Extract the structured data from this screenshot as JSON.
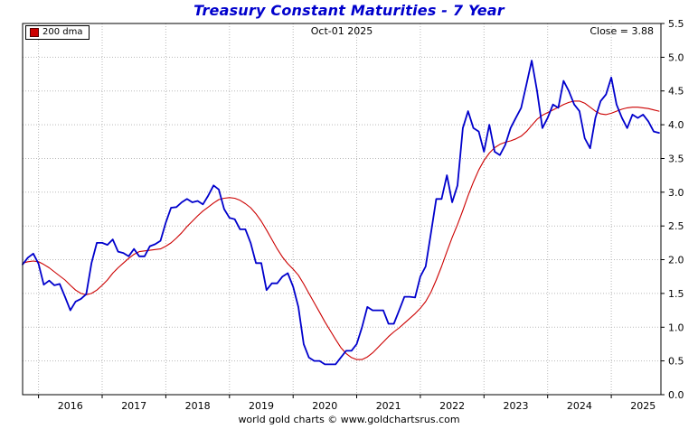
{
  "header": {
    "title": "Treasury Constant Maturities - 7 Year",
    "date_label": "Oct-01 2025",
    "close_label": "Close = 3.88"
  },
  "legend": {
    "items": [
      {
        "label": "200 dma",
        "color": "#cc0000"
      }
    ]
  },
  "footer": {
    "credit": "world gold charts © www.goldchartsrus.com"
  },
  "colors": {
    "title": "#0000cc",
    "yield_line": "#0000cc",
    "dma_line": "#cc0000",
    "grid": "#b9b9b9",
    "frame": "#000000"
  },
  "chart_data": {
    "type": "line",
    "title": "Treasury Constant Maturities - 7 Year",
    "xlabel": "",
    "ylabel": "",
    "grid": true,
    "legend_position": "top-left",
    "x_unit": "decimal_year",
    "xlim": [
      2015.75,
      2025.78
    ],
    "ylim": [
      0.0,
      5.5
    ],
    "y_tick_step": 0.5,
    "y_ticks": [
      0.0,
      0.5,
      1.0,
      1.5,
      2.0,
      2.5,
      3.0,
      3.5,
      4.0,
      4.5,
      5.0,
      5.5
    ],
    "y_tick_labels": [
      "0.0",
      "0.5",
      "1.0",
      "1.5",
      "2.0",
      "2.5",
      "3.0",
      "3.5",
      "4.0",
      "4.5",
      "5.0",
      "5.5"
    ],
    "x_ticks": [
      2016,
      2017,
      2018,
      2019,
      2020,
      2021,
      2022,
      2023,
      2024,
      2025
    ],
    "x_tick_labels": [
      "2016",
      "2017",
      "2018",
      "2019",
      "2020",
      "2021",
      "2022",
      "2023",
      "2024",
      "2025"
    ],
    "annotations": {
      "date": "Oct-01 2025",
      "close_text": "Close = 3.88",
      "last_close": 3.88
    },
    "x": [
      2015.75,
      2015.833,
      2015.917,
      2016.0,
      2016.083,
      2016.167,
      2016.25,
      2016.333,
      2016.417,
      2016.5,
      2016.583,
      2016.667,
      2016.75,
      2016.833,
      2016.917,
      2017.0,
      2017.083,
      2017.167,
      2017.25,
      2017.333,
      2017.417,
      2017.5,
      2017.583,
      2017.667,
      2017.75,
      2017.833,
      2017.917,
      2018.0,
      2018.083,
      2018.167,
      2018.25,
      2018.333,
      2018.417,
      2018.5,
      2018.583,
      2018.667,
      2018.75,
      2018.833,
      2018.917,
      2019.0,
      2019.083,
      2019.167,
      2019.25,
      2019.333,
      2019.417,
      2019.5,
      2019.583,
      2019.667,
      2019.75,
      2019.833,
      2019.917,
      2020.0,
      2020.083,
      2020.167,
      2020.25,
      2020.333,
      2020.417,
      2020.5,
      2020.583,
      2020.667,
      2020.75,
      2020.833,
      2020.917,
      2021.0,
      2021.083,
      2021.167,
      2021.25,
      2021.333,
      2021.417,
      2021.5,
      2021.583,
      2021.667,
      2021.75,
      2021.833,
      2021.917,
      2022.0,
      2022.083,
      2022.167,
      2022.25,
      2022.333,
      2022.417,
      2022.5,
      2022.583,
      2022.667,
      2022.75,
      2022.833,
      2022.917,
      2023.0,
      2023.083,
      2023.167,
      2023.25,
      2023.333,
      2023.417,
      2023.5,
      2023.583,
      2023.667,
      2023.75,
      2023.833,
      2023.917,
      2024.0,
      2024.083,
      2024.167,
      2024.25,
      2024.333,
      2024.417,
      2024.5,
      2024.583,
      2024.667,
      2024.75,
      2024.833,
      2024.917,
      2025.0,
      2025.083,
      2025.167,
      2025.25,
      2025.333,
      2025.417,
      2025.5,
      2025.583,
      2025.667,
      2025.75
    ],
    "series": [
      {
        "name": "7-Year Treasury Constant Maturity Yield",
        "color": "#0000cc",
        "stroke_width": 1.8,
        "values": [
          1.93,
          2.03,
          2.09,
          1.94,
          1.63,
          1.69,
          1.62,
          1.64,
          1.45,
          1.25,
          1.38,
          1.42,
          1.49,
          1.95,
          2.25,
          2.25,
          2.22,
          2.3,
          2.12,
          2.1,
          2.05,
          2.16,
          2.05,
          2.05,
          2.2,
          2.23,
          2.28,
          2.55,
          2.77,
          2.78,
          2.85,
          2.9,
          2.85,
          2.87,
          2.82,
          2.95,
          3.1,
          3.04,
          2.75,
          2.62,
          2.6,
          2.45,
          2.45,
          2.25,
          1.95,
          1.95,
          1.55,
          1.65,
          1.65,
          1.75,
          1.8,
          1.6,
          1.3,
          0.75,
          0.55,
          0.5,
          0.5,
          0.45,
          0.45,
          0.45,
          0.55,
          0.65,
          0.65,
          0.75,
          1.0,
          1.3,
          1.25,
          1.25,
          1.25,
          1.05,
          1.05,
          1.25,
          1.45,
          1.45,
          1.44,
          1.75,
          1.9,
          2.4,
          2.9,
          2.9,
          3.25,
          2.85,
          3.1,
          3.95,
          4.2,
          3.95,
          3.9,
          3.6,
          4.0,
          3.6,
          3.55,
          3.7,
          3.95,
          4.1,
          4.25,
          4.6,
          4.95,
          4.5,
          3.95,
          4.1,
          4.3,
          4.25,
          4.65,
          4.5,
          4.3,
          4.2,
          3.8,
          3.65,
          4.1,
          4.35,
          4.45,
          4.7,
          4.3,
          4.1,
          3.95,
          4.15,
          4.1,
          4.15,
          4.05,
          3.9,
          3.88
        ]
      },
      {
        "name": "200 dma",
        "color": "#cc0000",
        "stroke_width": 1.1,
        "values": [
          1.95,
          1.97,
          1.98,
          1.97,
          1.93,
          1.88,
          1.82,
          1.76,
          1.7,
          1.62,
          1.55,
          1.5,
          1.48,
          1.5,
          1.55,
          1.62,
          1.7,
          1.8,
          1.88,
          1.95,
          2.02,
          2.08,
          2.12,
          2.13,
          2.14,
          2.15,
          2.16,
          2.2,
          2.25,
          2.32,
          2.4,
          2.49,
          2.57,
          2.65,
          2.72,
          2.78,
          2.84,
          2.89,
          2.91,
          2.92,
          2.91,
          2.88,
          2.83,
          2.77,
          2.68,
          2.57,
          2.44,
          2.3,
          2.16,
          2.04,
          1.94,
          1.86,
          1.77,
          1.64,
          1.5,
          1.36,
          1.22,
          1.08,
          0.95,
          0.82,
          0.7,
          0.61,
          0.55,
          0.52,
          0.52,
          0.56,
          0.62,
          0.7,
          0.78,
          0.86,
          0.93,
          0.99,
          1.06,
          1.13,
          1.2,
          1.28,
          1.38,
          1.52,
          1.7,
          1.9,
          2.12,
          2.33,
          2.52,
          2.73,
          2.95,
          3.15,
          3.33,
          3.47,
          3.58,
          3.66,
          3.71,
          3.74,
          3.76,
          3.79,
          3.83,
          3.9,
          3.99,
          4.08,
          4.14,
          4.18,
          4.22,
          4.26,
          4.3,
          4.33,
          4.35,
          4.35,
          4.32,
          4.26,
          4.2,
          4.16,
          4.15,
          4.17,
          4.2,
          4.23,
          4.25,
          4.26,
          4.26,
          4.25,
          4.24,
          4.22,
          4.2
        ]
      }
    ]
  }
}
